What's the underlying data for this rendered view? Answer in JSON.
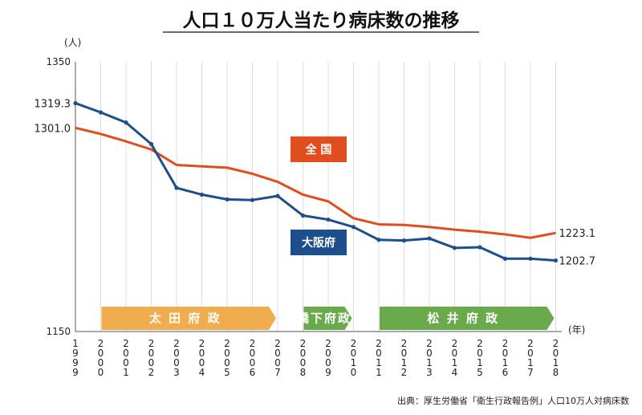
{
  "chart_data": {
    "type": "line",
    "title": "人口１０万人当たり病床数の推移",
    "y_unit": "(人)",
    "x_unit": "(年)",
    "ylim": [
      1150,
      1350
    ],
    "y_ticks": [
      "1350",
      "1150"
    ],
    "x": [
      "1999",
      "2000",
      "2001",
      "2002",
      "2003",
      "2004",
      "2005",
      "2006",
      "2007",
      "2008",
      "2009",
      "2010",
      "2011",
      "2012",
      "2013",
      "2014",
      "2015",
      "2016",
      "2017",
      "2018"
    ],
    "series": [
      {
        "name": "全 国",
        "color": "#e04e1f",
        "values": [
          1301.0,
          1296.5,
          1291.0,
          1285.0,
          1273.5,
          1272.5,
          1271.5,
          1267.0,
          1261.0,
          1251.5,
          1246.5,
          1234.0,
          1229.5,
          1229.0,
          1227.5,
          1225.5,
          1224.0,
          1222.0,
          1219.5,
          1223.1
        ]
      },
      {
        "name": "大阪府",
        "color": "#1f4e8c",
        "values": [
          1319.3,
          1312.5,
          1305.0,
          1289.0,
          1256.5,
          1251.5,
          1248.0,
          1247.5,
          1250.5,
          1236.0,
          1233.0,
          1227.5,
          1218.0,
          1217.5,
          1219.0,
          1212.0,
          1212.5,
          1204.0,
          1204.0,
          1202.7
        ]
      }
    ],
    "value_labels": {
      "start_national": "1301.0",
      "start_osaka": "1319.3",
      "end_national": "1223.1",
      "end_osaka": "1202.7"
    },
    "eras": [
      {
        "label": "太 田 府 政",
        "color": "#f0ad4e"
      },
      {
        "label": "橋下府政",
        "color": "#6aaa4c"
      },
      {
        "label": "松 井 府 政",
        "color": "#6aaa4c"
      }
    ],
    "grid": "vertical",
    "source": "出典：厚生労働省「衛生行政報告例」人口10万人対病床数"
  }
}
